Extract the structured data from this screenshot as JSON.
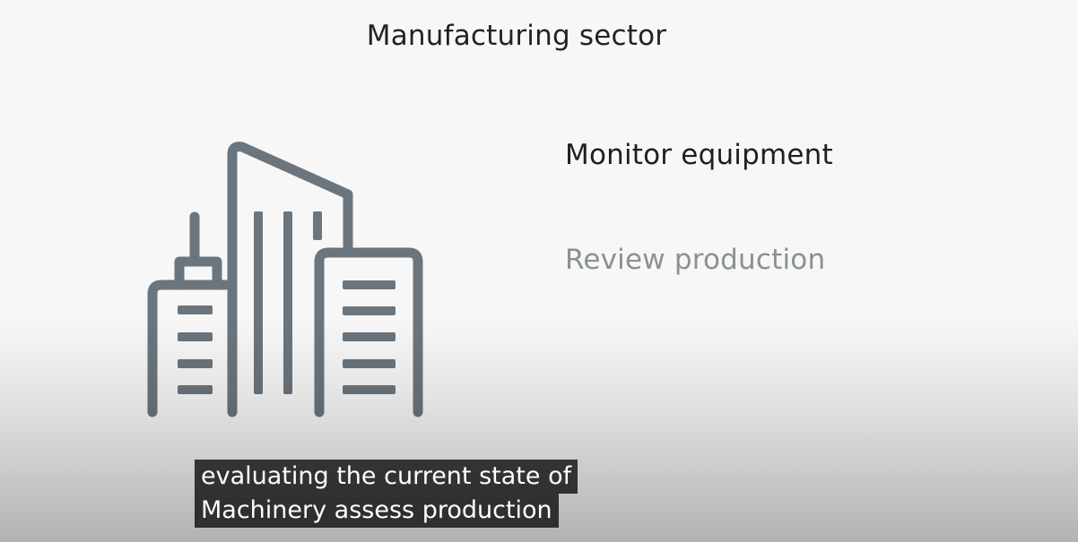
{
  "slide": {
    "title": "Manufacturing sector",
    "bullets": [
      {
        "label": "Monitor equipment",
        "state": "active"
      },
      {
        "label": "Review production",
        "state": "faded"
      }
    ],
    "icon": "building-icon",
    "colors": {
      "background": "#f7f7f7",
      "icon_stroke": "#6b757d",
      "title_text": "#1f2326",
      "active_bullet": "#1c2024",
      "faded_bullet": "#8a9094"
    }
  },
  "captions": {
    "line1": "evaluating the current state of",
    "line2": "Machinery assess production"
  }
}
